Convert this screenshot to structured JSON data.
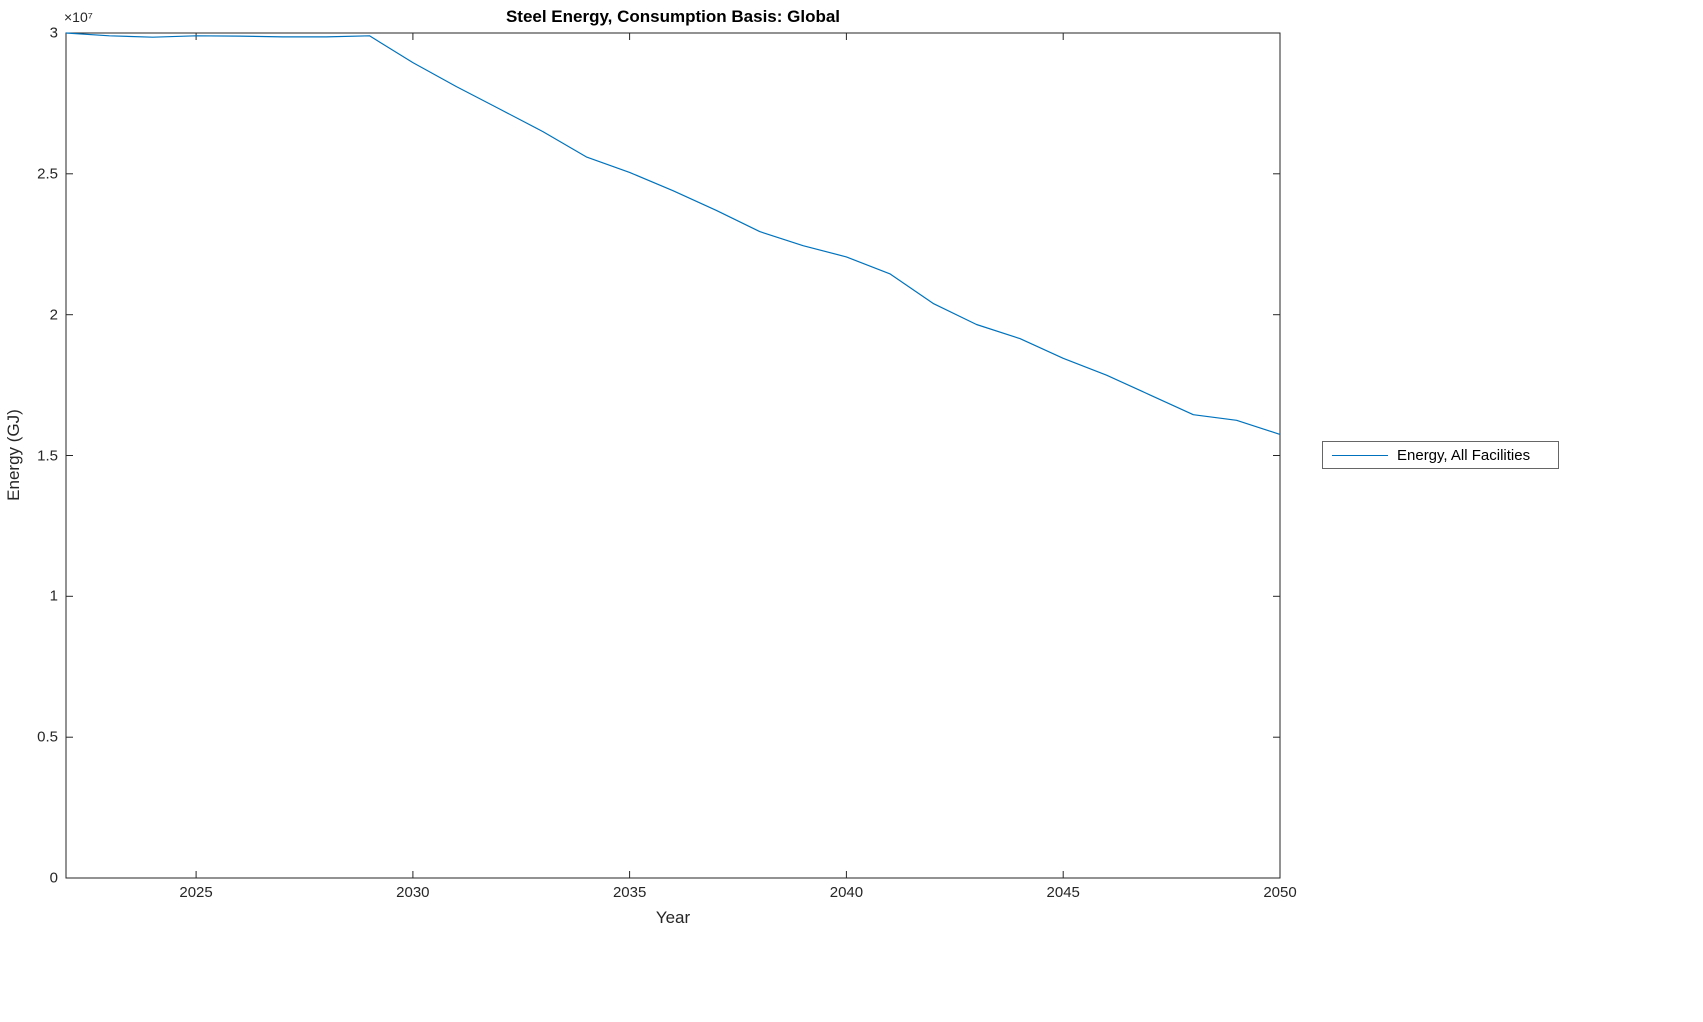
{
  "chart_data": {
    "type": "line",
    "title": "Steel Energy, Consumption Basis: Global",
    "xlabel": "Year",
    "ylabel": "Energy (GJ)",
    "y_exponent_label": "×10⁷",
    "xlim": [
      2022,
      2050
    ],
    "ylim": [
      0,
      30000000
    ],
    "x_ticks": [
      2025,
      2030,
      2035,
      2040,
      2045,
      2050
    ],
    "y_ticks": [
      0,
      0.5,
      1,
      1.5,
      2,
      2.5,
      3
    ],
    "y_tick_scale": 10000000,
    "grid": false,
    "legend_position": "right-outside",
    "axes_color": "#262626",
    "series": [
      {
        "name": "Energy, All Facilities",
        "color": "#0072BD",
        "x": [
          2022,
          2023,
          2024,
          2025,
          2026,
          2027,
          2028,
          2029,
          2030,
          2031,
          2032,
          2033,
          2034,
          2035,
          2036,
          2037,
          2038,
          2039,
          2040,
          2041,
          2042,
          2043,
          2044,
          2045,
          2046,
          2047,
          2048,
          2049,
          2050
        ],
        "values": [
          30000000,
          29900000,
          29850000,
          29900000,
          29890000,
          29860000,
          29860000,
          29900000,
          28950000,
          28100000,
          27300000,
          26500000,
          25600000,
          25050000,
          24400000,
          23700000,
          22950000,
          22450000,
          22050000,
          21450000,
          20400000,
          19650000,
          19150000,
          18450000,
          17850000,
          17150000,
          16450000,
          16250000,
          15750000
        ]
      }
    ]
  }
}
